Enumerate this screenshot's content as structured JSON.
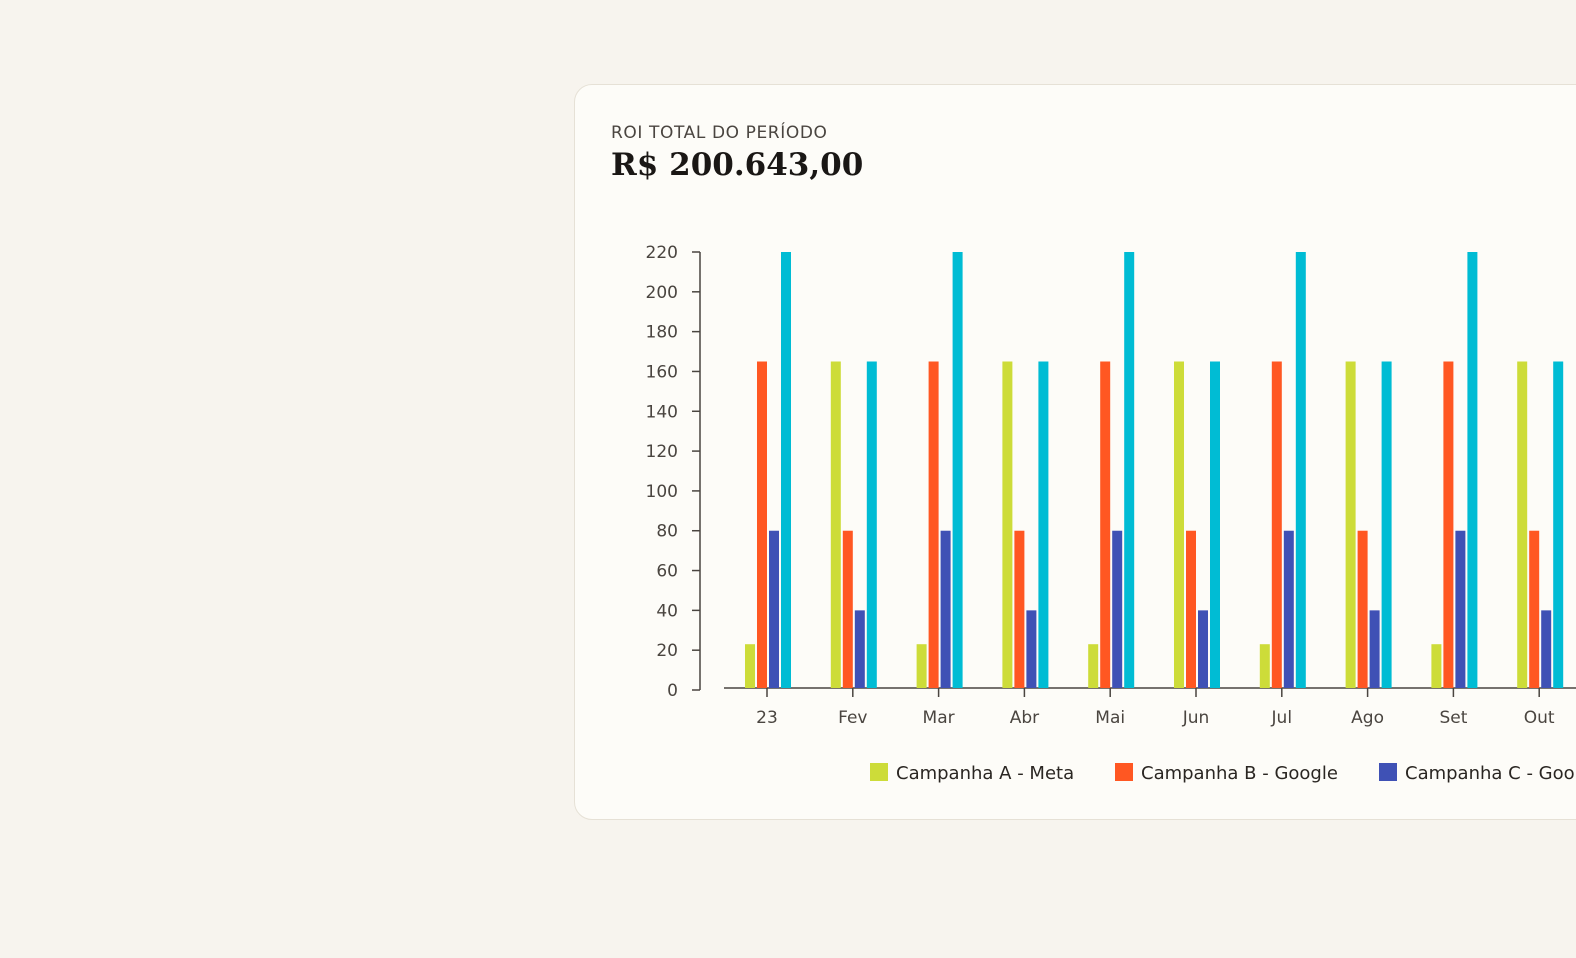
{
  "kpi": {
    "label": "ROI TOTAL DO PERÍODO",
    "value": "R$ 200.643,00"
  },
  "chart_data": {
    "type": "bar",
    "title": "",
    "xlabel": "",
    "ylabel": "",
    "ylim": [
      0,
      220
    ],
    "yticks": [
      0,
      20,
      40,
      60,
      80,
      100,
      120,
      140,
      160,
      180,
      200,
      220
    ],
    "categories": [
      "23",
      "Fev",
      "Mar",
      "Abr",
      "Mai",
      "Jun",
      "Jul",
      "Ago",
      "Set",
      "Out"
    ],
    "series": [
      {
        "name": "Campanha A - Meta",
        "color": "#cddc39",
        "values": [
          23,
          165,
          23,
          165,
          23,
          165,
          23,
          165,
          23,
          165
        ]
      },
      {
        "name": "Campanha B - Google",
        "color": "#ff5722",
        "values": [
          165,
          80,
          165,
          80,
          165,
          80,
          165,
          80,
          165,
          80
        ]
      },
      {
        "name": "Campanha C - Goo",
        "color": "#3f51b5",
        "values": [
          80,
          40,
          80,
          40,
          80,
          40,
          80,
          40,
          80,
          40
        ]
      },
      {
        "name": "",
        "color": "#00bcd4",
        "values": [
          220,
          165,
          220,
          165,
          220,
          165,
          220,
          165,
          220,
          165
        ]
      }
    ],
    "grid": false,
    "legend_position": "bottom"
  }
}
